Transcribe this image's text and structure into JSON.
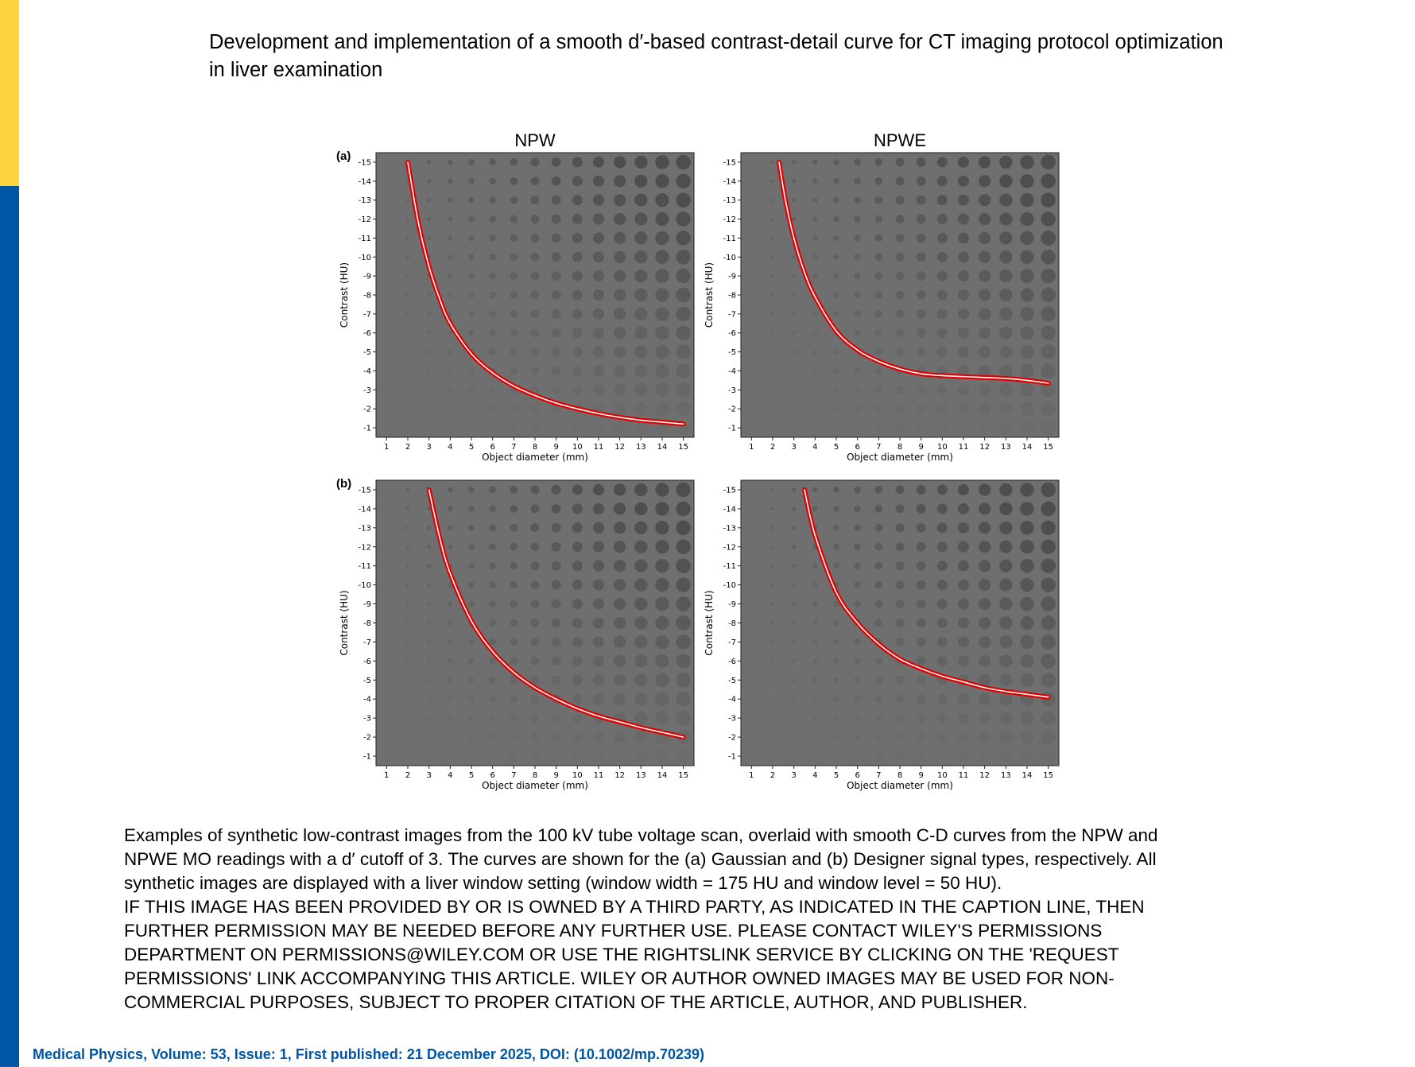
{
  "colors": {
    "accent_yellow": "#FFD23F",
    "accent_blue": "#0055A4",
    "curve": "#e00000",
    "image_gray": "#6f6f6f"
  },
  "title_lines": [
    "Development and implementation of a smooth d′-based contrast-detail curve for CT imaging protocol optimization",
    "in liver examination"
  ],
  "chart_data": [
    {
      "type": "line",
      "panel_label": "(a)",
      "title": "NPW",
      "xlabel": "Object diameter (mm)",
      "ylabel": "Contrast (HU)",
      "xticks": [
        1,
        2,
        3,
        4,
        5,
        6,
        7,
        8,
        9,
        10,
        11,
        12,
        13,
        14,
        15
      ],
      "yticks": [
        -15,
        -14,
        -13,
        -12,
        -11,
        -10,
        -9,
        -8,
        -7,
        -6,
        -5,
        -4,
        -3,
        -2,
        -1
      ],
      "xlim": [
        0.5,
        15.5
      ],
      "ylim": [
        -15.5,
        -0.5
      ],
      "y_inverted": true,
      "x": [
        2,
        2.5,
        3,
        3.5,
        4,
        5,
        6,
        7,
        8,
        9,
        10,
        11,
        12,
        13,
        14,
        15
      ],
      "y": [
        -15,
        -11.8,
        -9.5,
        -7.8,
        -6.5,
        -4.9,
        -3.9,
        -3.2,
        -2.7,
        -2.3,
        -2.0,
        -1.75,
        -1.55,
        -1.4,
        -1.3,
        -1.2
      ]
    },
    {
      "type": "line",
      "panel_label": "",
      "title": "NPWE",
      "xlabel": "Object diameter (mm)",
      "ylabel": "Contrast (HU)",
      "xticks": [
        1,
        2,
        3,
        4,
        5,
        6,
        7,
        8,
        9,
        10,
        11,
        12,
        13,
        14,
        15
      ],
      "yticks": [
        -15,
        -14,
        -13,
        -12,
        -11,
        -10,
        -9,
        -8,
        -7,
        -6,
        -5,
        -4,
        -3,
        -2,
        -1
      ],
      "xlim": [
        0.5,
        15.5
      ],
      "ylim": [
        -15.5,
        -0.5
      ],
      "y_inverted": true,
      "x": [
        2.3,
        2.6,
        3,
        3.5,
        4,
        5,
        6,
        7,
        8,
        9,
        10,
        11,
        12,
        13,
        14,
        15
      ],
      "y": [
        -15,
        -13,
        -11,
        -9.2,
        -7.9,
        -6.1,
        -5.1,
        -4.5,
        -4.1,
        -3.85,
        -3.75,
        -3.7,
        -3.65,
        -3.6,
        -3.5,
        -3.35
      ]
    },
    {
      "type": "line",
      "panel_label": "(b)",
      "title": "",
      "xlabel": "Object diameter (mm)",
      "ylabel": "Contrast (HU)",
      "xticks": [
        1,
        2,
        3,
        4,
        5,
        6,
        7,
        8,
        9,
        10,
        11,
        12,
        13,
        14,
        15
      ],
      "yticks": [
        -15,
        -14,
        -13,
        -12,
        -11,
        -10,
        -9,
        -8,
        -7,
        -6,
        -5,
        -4,
        -3,
        -2,
        -1
      ],
      "xlim": [
        0.5,
        15.5
      ],
      "ylim": [
        -15.5,
        -0.5
      ],
      "y_inverted": true,
      "x": [
        3,
        3.5,
        4,
        5,
        6,
        7,
        8,
        9,
        10,
        11,
        12,
        13,
        14,
        15
      ],
      "y": [
        -15,
        -12.5,
        -10.6,
        -8.1,
        -6.5,
        -5.4,
        -4.6,
        -4.0,
        -3.5,
        -3.1,
        -2.8,
        -2.5,
        -2.25,
        -2.0
      ]
    },
    {
      "type": "line",
      "panel_label": "",
      "title": "",
      "xlabel": "Object diameter (mm)",
      "ylabel": "Contrast (HU)",
      "xticks": [
        1,
        2,
        3,
        4,
        5,
        6,
        7,
        8,
        9,
        10,
        11,
        12,
        13,
        14,
        15
      ],
      "yticks": [
        -15,
        -14,
        -13,
        -12,
        -11,
        -10,
        -9,
        -8,
        -7,
        -6,
        -5,
        -4,
        -3,
        -2,
        -1
      ],
      "xlim": [
        0.5,
        15.5
      ],
      "ylim": [
        -15.5,
        -0.5
      ],
      "y_inverted": true,
      "x": [
        3.5,
        4,
        5,
        6,
        7,
        8,
        9,
        10,
        11,
        12,
        13,
        14,
        15
      ],
      "y": [
        -15,
        -12.6,
        -9.6,
        -8.0,
        -6.9,
        -6.1,
        -5.6,
        -5.2,
        -4.9,
        -4.6,
        -4.4,
        -4.25,
        -4.1
      ]
    }
  ],
  "caption_lines": [
    "Examples of synthetic low-contrast images from the 100 kV tube voltage scan, overlaid with smooth C-D curves from the NPW and",
    "NPWE MO readings with a d′ cutoff of 3. The curves are shown for the (a) Gaussian and (b) Designer signal types, respectively. All",
    "synthetic images are displayed with a liver window setting (window width = 175 HU and window level = 50 HU).",
    "IF THIS IMAGE HAS BEEN PROVIDED BY OR IS OWNED BY A THIRD PARTY, AS INDICATED IN THE CAPTION LINE, THEN",
    "FURTHER PERMISSION MAY BE NEEDED BEFORE ANY FURTHER USE. PLEASE CONTACT WILEY'S PERMISSIONS",
    "DEPARTMENT ON PERMISSIONS@WILEY.COM OR USE THE RIGHTSLINK SERVICE BY CLICKING ON THE 'REQUEST",
    "PERMISSIONS' LINK ACCOMPANYING THIS ARTICLE. WILEY OR AUTHOR OWNED IMAGES MAY BE USED FOR NON-",
    "COMMERCIAL PURPOSES, SUBJECT TO PROPER CITATION OF THE ARTICLE, AUTHOR, AND PUBLISHER."
  ],
  "footer": "Medical Physics, Volume: 53, Issue: 1, First published: 21 December 2025, DOI: (10.1002/mp.70239)"
}
